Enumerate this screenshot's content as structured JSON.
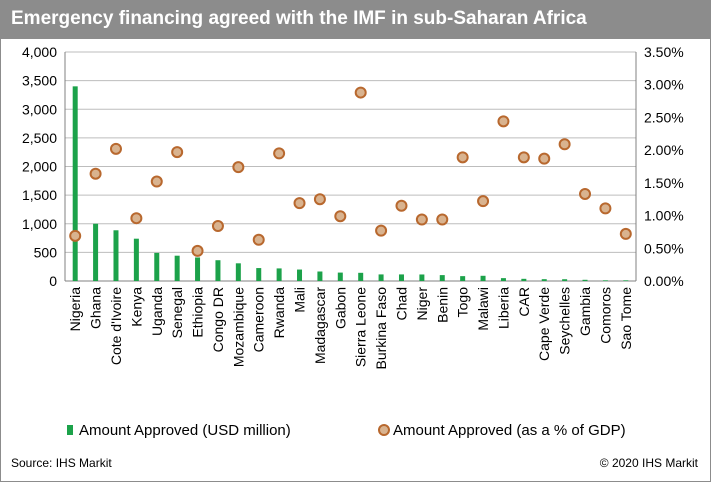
{
  "title": "Emergency financing agreed with the IMF in sub-Saharan Africa",
  "footer": {
    "source": "Source: IHS Markit",
    "copyright": "© 2020 IHS Markit"
  },
  "colors": {
    "title_bg": "#8c8c8c",
    "bar": "#1ca24a",
    "dot_fill": "#d9b38f",
    "dot_stroke": "#b8682e"
  },
  "chart_data": {
    "type": "bar",
    "categories": [
      "Nigeria",
      "Ghana",
      "Cote d'Ivoire",
      "Kenya",
      "Uganda",
      "Senegal",
      "Ethiopia",
      "Congo DR",
      "Mozambique",
      "Cameroon",
      "Rwanda",
      "Mali",
      "Madagascar",
      "Gabon",
      "Sierra Leone",
      "Burkina Faso",
      "Chad",
      "Niger",
      "Benin",
      "Togo",
      "Malawi",
      "Liberia",
      "CAR",
      "Cape Verde",
      "Seychelles",
      "Gambia",
      "Comoros",
      "Sao Tome"
    ],
    "series": [
      {
        "name": "Amount Approved (USD million)",
        "type": "bar",
        "axis": "left",
        "values": [
          3400,
          1000,
          886,
          739,
          491,
          442,
          411,
          363,
          309,
          226,
          220,
          200,
          166,
          147,
          143,
          115,
          115,
          114,
          103,
          85,
          91,
          50,
          38,
          32,
          31,
          21,
          12,
          12
        ]
      },
      {
        "name": "Amount Approved (as a % of GDP)",
        "type": "scatter",
        "axis": "right",
        "values": [
          0.0069,
          0.0164,
          0.0202,
          0.0096,
          0.0152,
          0.0197,
          0.0046,
          0.0084,
          0.0174,
          0.0063,
          0.0195,
          0.0119,
          0.0125,
          0.0099,
          0.0288,
          0.0077,
          0.0115,
          0.0094,
          0.0094,
          0.0189,
          0.0122,
          0.0244,
          0.0189,
          0.0187,
          0.0209,
          0.0133,
          0.0111,
          0.0072
        ]
      }
    ],
    "left_axis": {
      "min": 0,
      "max": 4000,
      "ticks": [
        "0",
        "500",
        "1,000",
        "1,500",
        "2,000",
        "2,500",
        "3,000",
        "3,500",
        "4,000"
      ]
    },
    "right_axis": {
      "min": 0,
      "max": 0.035,
      "ticks": [
        "0.00%",
        "0.50%",
        "1.00%",
        "1.50%",
        "2.00%",
        "2.50%",
        "3.00%",
        "3.50%"
      ]
    },
    "grid": true,
    "legend_position": "bottom"
  }
}
